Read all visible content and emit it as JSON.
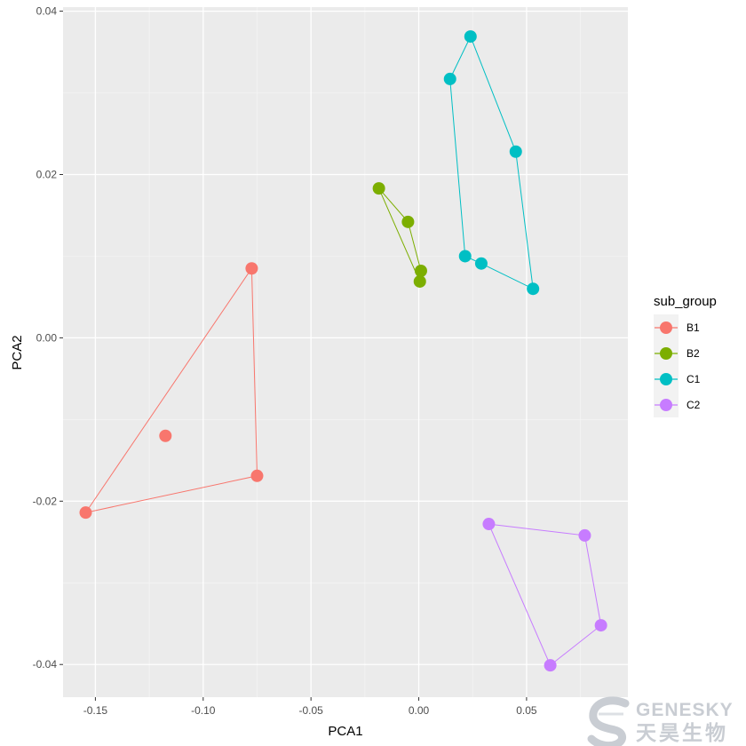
{
  "chart_data": {
    "type": "scatter",
    "xlabel": "PCA1",
    "ylabel": "PCA2",
    "xlim": [
      -0.165,
      0.097
    ],
    "ylim": [
      -0.044,
      0.0405
    ],
    "x_ticks": [
      -0.15,
      -0.1,
      -0.05,
      0.0,
      0.05
    ],
    "x_tick_labels": [
      "-0.15",
      "-0.10",
      "-0.05",
      "0.00",
      "0.05"
    ],
    "y_ticks": [
      -0.04,
      -0.02,
      0.0,
      0.02,
      0.04
    ],
    "y_tick_labels": [
      "-0.04",
      "-0.02",
      "0.00",
      "0.02",
      "0.04"
    ],
    "grid": true,
    "legend_title": "sub_group",
    "legend_position": "right",
    "series": [
      {
        "name": "B1",
        "color": "#F8766D",
        "points": [
          [
            -0.0775,
            0.0085
          ],
          [
            -0.1175,
            -0.012
          ],
          [
            -0.075,
            -0.0169
          ],
          [
            -0.1545,
            -0.0214
          ]
        ],
        "hull": [
          [
            -0.0775,
            0.0085
          ],
          [
            -0.075,
            -0.0169
          ],
          [
            -0.1545,
            -0.0214
          ]
        ]
      },
      {
        "name": "B2",
        "color": "#7CAE00",
        "points": [
          [
            -0.0185,
            0.0183
          ],
          [
            -0.005,
            0.0142
          ],
          [
            0.001,
            0.0082
          ],
          [
            0.0005,
            0.0069
          ]
        ],
        "hull": [
          [
            -0.0185,
            0.0183
          ],
          [
            -0.005,
            0.0142
          ],
          [
            0.001,
            0.0082
          ],
          [
            0.0005,
            0.0069
          ]
        ]
      },
      {
        "name": "C1",
        "color": "#00BFC4",
        "points": [
          [
            0.024,
            0.0369
          ],
          [
            0.0145,
            0.0317
          ],
          [
            0.045,
            0.0228
          ],
          [
            0.0215,
            0.01
          ],
          [
            0.029,
            0.0091
          ],
          [
            0.053,
            0.006
          ]
        ],
        "hull": [
          [
            0.024,
            0.0369
          ],
          [
            0.045,
            0.0228
          ],
          [
            0.053,
            0.006
          ],
          [
            0.029,
            0.0091
          ],
          [
            0.0215,
            0.01
          ],
          [
            0.0145,
            0.0317
          ]
        ]
      },
      {
        "name": "C2",
        "color": "#C77CFF",
        "points": [
          [
            0.0325,
            -0.0228
          ],
          [
            0.077,
            -0.0242
          ],
          [
            0.0845,
            -0.0352
          ],
          [
            0.061,
            -0.0401
          ]
        ],
        "hull": [
          [
            0.0325,
            -0.0228
          ],
          [
            0.077,
            -0.0242
          ],
          [
            0.0845,
            -0.0352
          ],
          [
            0.061,
            -0.0401
          ]
        ]
      }
    ]
  },
  "watermark": {
    "name_en": "GENESKY",
    "name_cn": "天昊生物"
  }
}
